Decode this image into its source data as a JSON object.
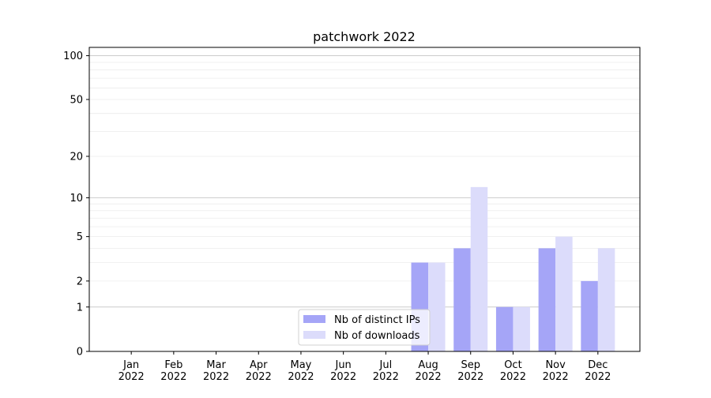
{
  "chart_data": {
    "type": "bar",
    "title": "patchwork 2022",
    "xlabel": "",
    "ylabel": "",
    "yscale": "log(y+1)",
    "ylim": [
      0,
      114
    ],
    "yticks": [
      0,
      1,
      2,
      5,
      10,
      20,
      50,
      100
    ],
    "grid": true,
    "legend_placement": "lower-center",
    "categories": [
      "Jan\n2022",
      "Feb\n2022",
      "Mar\n2022",
      "Apr\n2022",
      "May\n2022",
      "Jun\n2022",
      "Jul\n2022",
      "Aug\n2022",
      "Sep\n2022",
      "Oct\n2022",
      "Nov\n2022",
      "Dec\n2022"
    ],
    "series": [
      {
        "name": "Nb of distinct IPs",
        "color": "#a5a5f7",
        "values": [
          0,
          0,
          0,
          0,
          0,
          0,
          0,
          3,
          4,
          1,
          4,
          2
        ]
      },
      {
        "name": "Nb of downloads",
        "color": "#dcdcfb",
        "values": [
          0,
          0,
          0,
          0,
          0,
          0,
          0,
          3,
          12,
          1,
          5,
          4
        ]
      }
    ]
  }
}
